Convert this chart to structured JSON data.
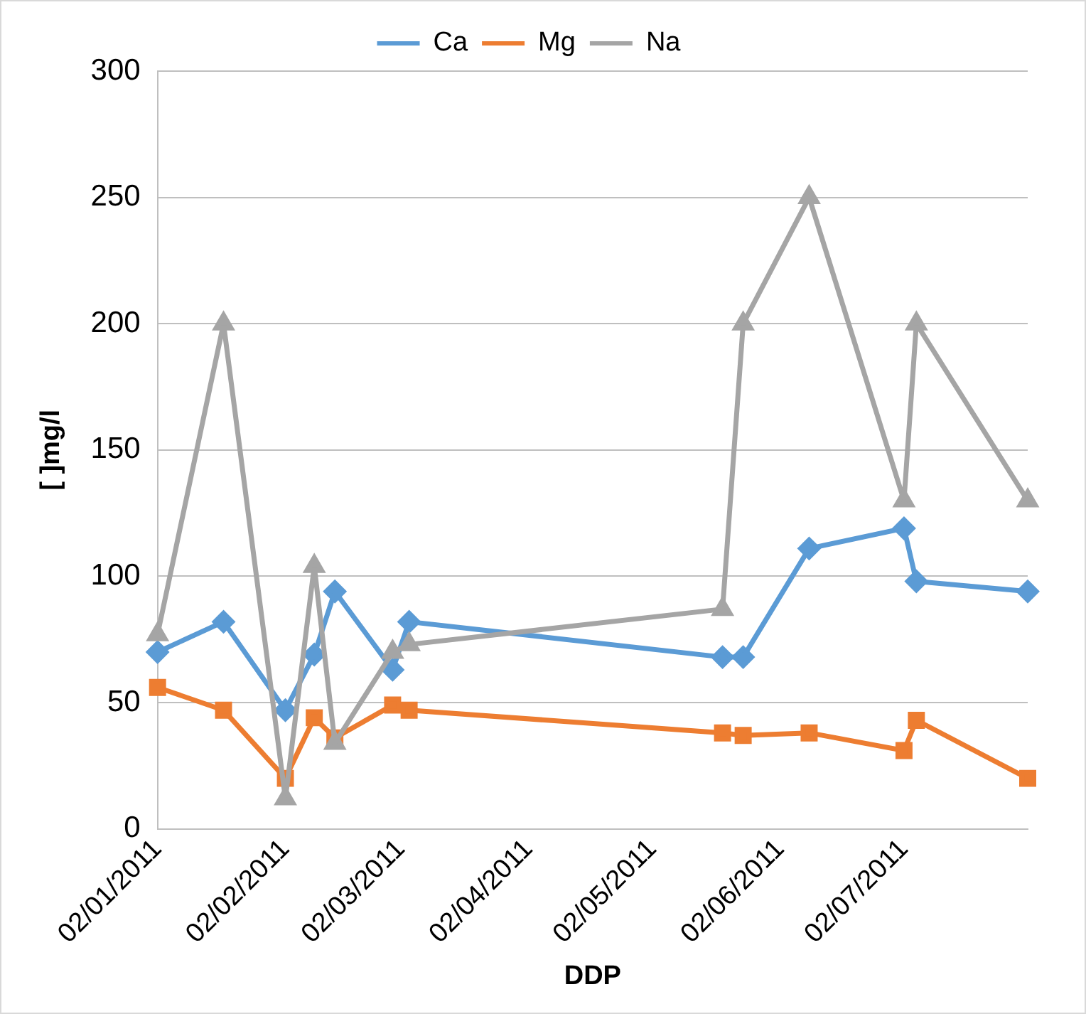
{
  "chart_data": {
    "type": "line",
    "xlabel": "DDP",
    "ylabel": "[ ]mg/l",
    "x": [
      "2011-01-02",
      "2011-01-18",
      "2011-02-02",
      "2011-02-09",
      "2011-02-14",
      "2011-02-28",
      "2011-03-04",
      "2011-05-19",
      "2011-05-24",
      "2011-06-09",
      "2011-07-02",
      "2011-07-05",
      "2011-08-01"
    ],
    "series": [
      {
        "name": "Ca",
        "color": "#5b9bd5",
        "marker": "diamond",
        "values": [
          70,
          82,
          47,
          69,
          94,
          63,
          82,
          68,
          68,
          111,
          119,
          98,
          94
        ]
      },
      {
        "name": "Mg",
        "color": "#ed7d31",
        "marker": "square",
        "values": [
          56,
          47,
          20,
          44,
          36,
          49,
          47,
          38,
          37,
          38,
          31,
          43,
          20
        ]
      },
      {
        "name": "Na",
        "color": "#a5a5a5",
        "marker": "triangle",
        "values": [
          77,
          200,
          12,
          104,
          34,
          70,
          73,
          87,
          200,
          250,
          130,
          200,
          130
        ]
      }
    ],
    "xlim": [
      "2011-01-02",
      "2011-08-01"
    ],
    "xticks": [
      {
        "value": "2011-01-02",
        "label": "02/01/2011"
      },
      {
        "value": "2011-02-02",
        "label": "02/02/2011"
      },
      {
        "value": "2011-03-02",
        "label": "02/03/2011"
      },
      {
        "value": "2011-04-02",
        "label": "02/04/2011"
      },
      {
        "value": "2011-05-02",
        "label": "02/05/2011"
      },
      {
        "value": "2011-06-02",
        "label": "02/06/2011"
      },
      {
        "value": "2011-07-02",
        "label": "02/07/2011"
      }
    ],
    "ylim": [
      0,
      300
    ],
    "yticks": [
      0,
      50,
      100,
      150,
      200,
      250,
      300
    ],
    "grid": "y",
    "legend": "top",
    "line_style": "solid"
  }
}
